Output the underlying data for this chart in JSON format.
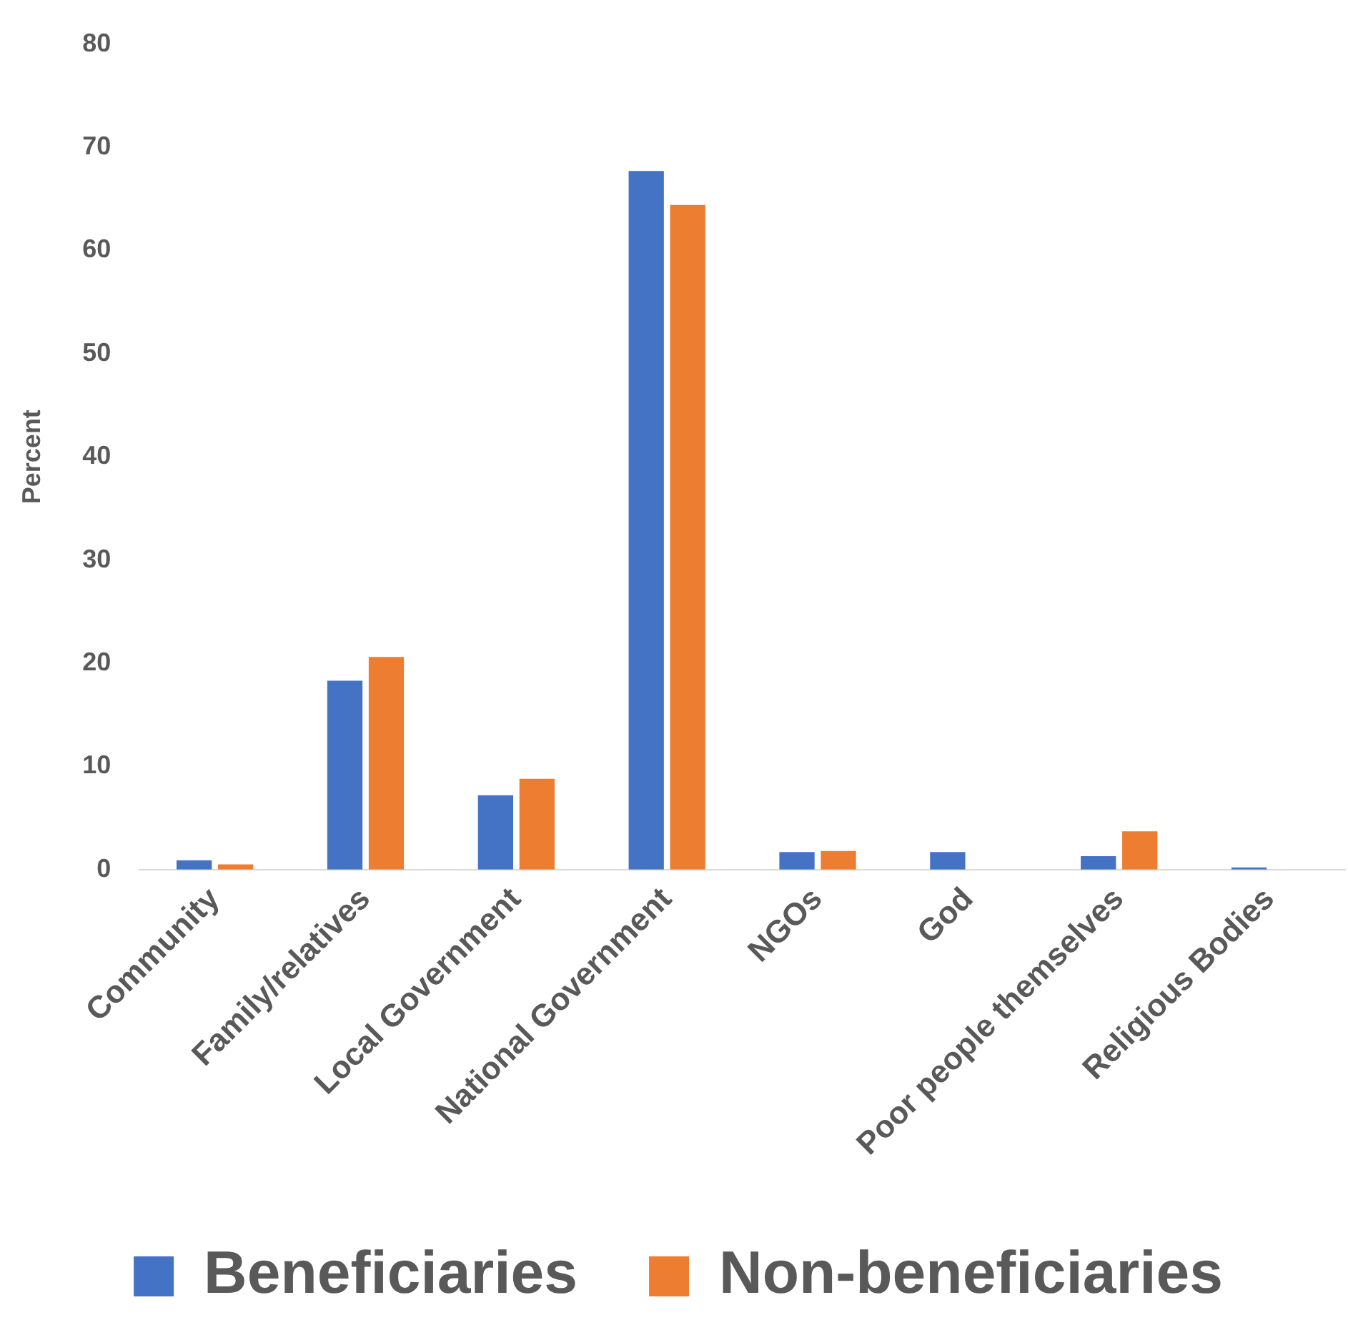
{
  "chart_data": {
    "type": "bar",
    "ylabel": "Percent",
    "categories": [
      "Community",
      "Family/relatives",
      "Local Government",
      "National Government",
      "NGOs",
      "God",
      "Poor people themselves",
      "Religious Bodies"
    ],
    "series": [
      {
        "name": "Beneficiaries",
        "color": "#4472c4",
        "values": [
          0.9,
          18.3,
          7.2,
          67.7,
          1.7,
          1.7,
          1.3,
          0.2
        ]
      },
      {
        "name": "Non-beneficiaries",
        "color": "#ed7d31",
        "values": [
          0.5,
          20.6,
          8.8,
          64.4,
          1.8,
          0,
          3.7,
          0
        ]
      }
    ],
    "ylim": [
      0,
      80
    ],
    "yticks": [
      0,
      10,
      20,
      30,
      40,
      50,
      60,
      70,
      80
    ],
    "grid": false,
    "legend": "bottom"
  }
}
